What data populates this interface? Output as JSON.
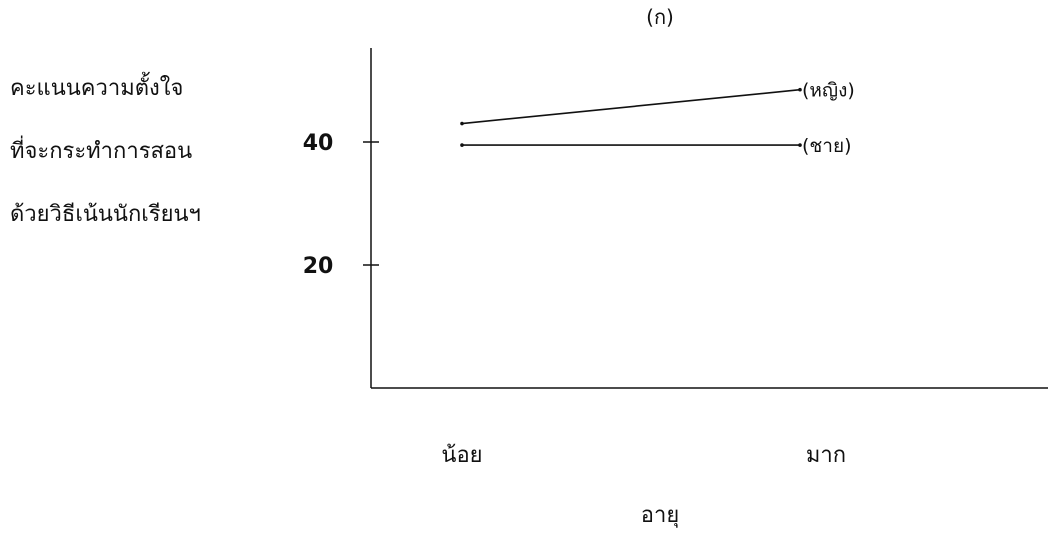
{
  "chart_data": {
    "type": "line",
    "title": "(ก)",
    "ylabel_lines": [
      "คะแนนความตั้งใจ",
      "ที่จะกระทำการสอน",
      "ด้วยวิธีเน้นนักเรียนฯ"
    ],
    "xlabel": "อายุ",
    "categories": [
      "น้อย",
      "มาก"
    ],
    "yticks": [
      20,
      40
    ],
    "ylim": [
      0,
      56
    ],
    "grid": false,
    "series": [
      {
        "name": "(หญิง)",
        "values": [
          43,
          48.5
        ]
      },
      {
        "name": "(ชาย)",
        "values": [
          39.5,
          39.5
        ]
      }
    ],
    "colors": {
      "line": "#111111",
      "axis": "#111111"
    }
  }
}
